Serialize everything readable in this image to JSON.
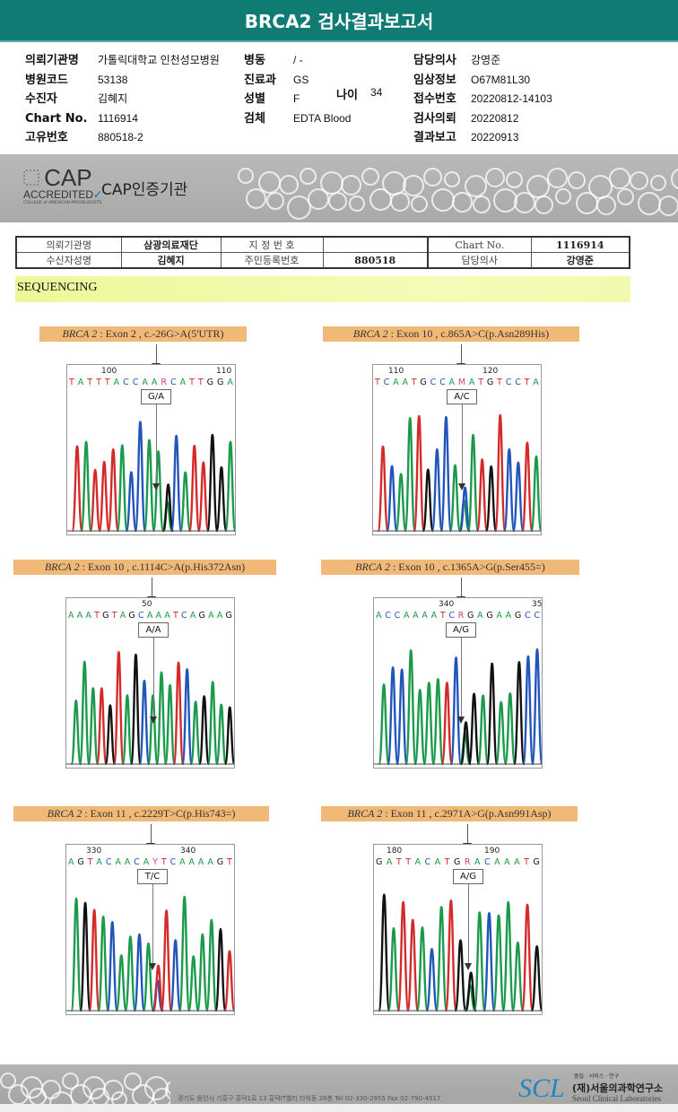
{
  "title": "BRCA2 검사결과보고서",
  "header": {
    "col1": [
      {
        "label": "의뢰기관명",
        "value": "가톨릭대학교 인천성모병원"
      },
      {
        "label": "병원코드",
        "value": "53138"
      },
      {
        "label": "수진자",
        "value": "김혜지"
      },
      {
        "label": "Chart No.",
        "value": "1116914"
      },
      {
        "label": "고유번호",
        "value": "880518-2"
      }
    ],
    "col2": [
      {
        "label": "병동",
        "value": "/ -"
      },
      {
        "label": "진료과",
        "value": "GS"
      },
      {
        "label": "성별",
        "value": "F"
      },
      {
        "label": "검체",
        "value": "EDTA Blood"
      }
    ],
    "age": {
      "label": "나이",
      "value": "34"
    },
    "col3": [
      {
        "label": "담당의사",
        "value": "강영준"
      },
      {
        "label": "임상정보",
        "value": "O67M81L30"
      },
      {
        "label": "접수번호",
        "value": "20220812-14103"
      },
      {
        "label": "검사의뢰",
        "value": "20220812"
      },
      {
        "label": "결과보고",
        "value": "20220913"
      }
    ]
  },
  "cap": {
    "logo_text": "CAP",
    "logo_sub": "ACCREDITED",
    "logo_small": "COLLEGE of AMERICAN PATHOLOGISTS",
    "label": "CAP인증기관"
  },
  "report_table": {
    "r1": [
      "의뢰기관명",
      "삼광의료재단",
      "지 정 번 호",
      "",
      "Chart No.",
      "1116914"
    ],
    "r2": [
      "수신자성명",
      "김혜지",
      "주민등록번호",
      "880518",
      "담당의사",
      "강영준"
    ]
  },
  "section_title": "SEQUENCING",
  "colors": {
    "A": "#1a9a4a",
    "C": "#2255bb",
    "G": "#111111",
    "T": "#d42a2a",
    "N": "#d0407a",
    "title_bar": "#0f7b73",
    "label_bg": "#f1b978"
  },
  "variants": [
    {
      "gene": "BRCA 2",
      "desc": " : Exon 2 , c.-26G>A(5'UTR)",
      "sequence": "TATTTACCAARCATTGGA",
      "ticks": [
        "100",
        "110"
      ],
      "genotype": "G/A",
      "het": "R"
    },
    {
      "gene": "BRCA 2",
      "desc": " : Exon 10 , c.865A>C(p.Asn289His)",
      "sequence": "TCAATGCCAMATGTCCTA",
      "ticks": [
        "110",
        "120"
      ],
      "genotype": "A/C",
      "het": "M"
    },
    {
      "gene": "BRCA 2",
      "desc": " : Exon 10 , c.1114C>A(p.His372Asn)",
      "sequence": "AAATGTAGCAAATCAGAAG",
      "ticks": [
        "50"
      ],
      "genotype": "A/A",
      "het": ""
    },
    {
      "gene": "BRCA 2",
      "desc": " : Exon 10 , c.1365A>G(p.Ser455=)",
      "sequence": "ACCAAAATCRGAGAAGCC",
      "ticks": [
        "340",
        "35"
      ],
      "genotype": "A/G",
      "het": "R"
    },
    {
      "gene": "BRCA 2",
      "desc": " : Exon 11 , c.2229T>C(p.His743=)",
      "sequence": "AGTACAACAYTCAAAAGT",
      "ticks": [
        "330",
        "340"
      ],
      "genotype": "T/C",
      "het": "Y"
    },
    {
      "gene": "BRCA 2",
      "desc": " : Exon 11 , c.2971A>G(p.Asn991Asp)",
      "sequence": "GATTACATGRACAAATG",
      "ticks": [
        "180",
        "190"
      ],
      "genotype": "A/G",
      "het": "R"
    }
  ],
  "footer": {
    "address": "경기도 용인시 기흥구 흥덕1로 13 흥덕IT밸리 타워동 26층  Tel 02-330-2955  Fax 02-790-4517",
    "slogan": "품질 · 서비스 · 연구",
    "org": "(재)서울의과학연구소",
    "org_en": "Seoul Clinical Laboratories",
    "logo": "SCL"
  }
}
